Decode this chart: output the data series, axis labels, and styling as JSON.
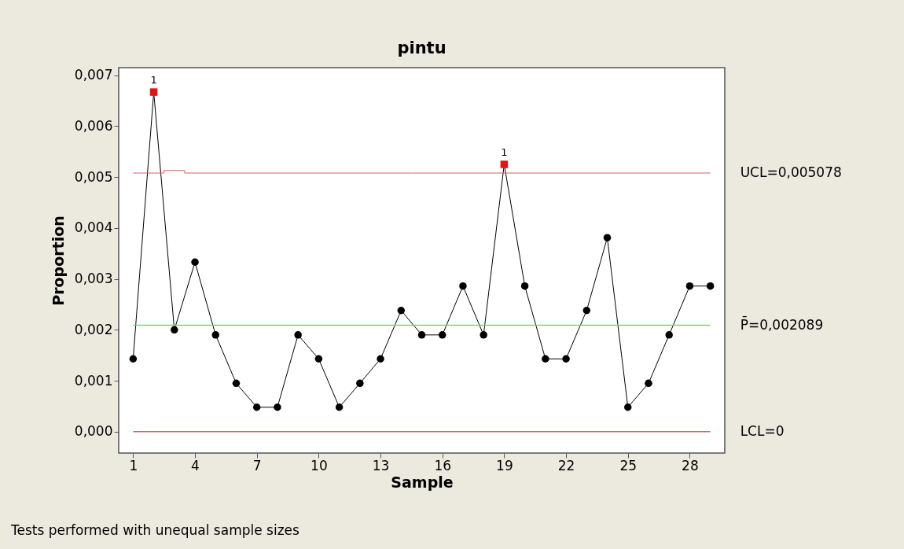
{
  "chart_data": {
    "type": "line",
    "title": "pintu",
    "xlabel": "Sample",
    "ylabel": "Proportion",
    "x": [
      1,
      2,
      3,
      4,
      5,
      6,
      7,
      8,
      9,
      10,
      11,
      12,
      13,
      14,
      15,
      16,
      17,
      18,
      19,
      20,
      21,
      22,
      23,
      24,
      25,
      26,
      27,
      28,
      29
    ],
    "series": [
      {
        "color": "#000000",
        "colors": [
          "#000000",
          "#e31414",
          "#000000",
          "#000000",
          "#000000",
          "#000000",
          "#000000",
          "#000000",
          "#000000",
          "#000000",
          "#000000",
          "#000000",
          "#000000",
          "#000000",
          "#000000",
          "#000000",
          "#000000",
          "#000000",
          "#e31414",
          "#000000",
          "#000000",
          "#000000",
          "#000000",
          "#000000",
          "#000000",
          "#000000",
          "#000000",
          "#000000",
          "#000000"
        ],
        "values": [
          0.00143,
          0.00667,
          0.002,
          0.00333,
          0.0019,
          0.00095,
          0.00048,
          0.00048,
          0.0019,
          0.00143,
          0.00048,
          0.00095,
          0.00143,
          0.00238,
          0.0019,
          0.0019,
          0.00286,
          0.0019,
          0.00525,
          0.00286,
          0.00143,
          0.00143,
          0.00238,
          0.00381,
          0.00048,
          0.00095,
          0.0019,
          0.00286,
          0.00286
        ]
      },
      {
        "name": "UCL=0,005078",
        "type": "step",
        "marker": "none",
        "color": "#d4606e",
        "values": [
          0.00508,
          0.00508,
          0.00513,
          0.00508,
          0.00508,
          0.00508,
          0.00508,
          0.00508,
          0.00508,
          0.00508,
          0.00508,
          0.00508,
          0.00508,
          0.00508,
          0.00508,
          0.00508,
          0.00508,
          0.00508,
          0.00508,
          0.00508,
          0.00508,
          0.00508,
          0.00508,
          0.00508,
          0.00508,
          0.00508,
          0.00508,
          0.00508,
          0.00508
        ]
      }
    ],
    "xlim": [
      0.3,
      29.7
    ],
    "xticks": [
      1,
      4,
      7,
      10,
      13,
      16,
      19,
      22,
      25,
      28
    ],
    "ylim": [
      -0.00042,
      0.00715
    ],
    "yticks": [
      {
        "value": 0,
        "label": "0,000"
      },
      {
        "value": 0.001,
        "label": "0,001"
      },
      {
        "value": 0.002,
        "label": "0,002"
      },
      {
        "value": 0.003,
        "label": "0,003"
      },
      {
        "value": 0.004,
        "label": "0,004"
      },
      {
        "value": 0.005,
        "label": "0,005"
      },
      {
        "value": 0.006,
        "label": "0,006"
      },
      {
        "value": 0.007,
        "label": "0,007"
      }
    ],
    "ref_lines": [
      {
        "axis": "y",
        "value": 0.002089,
        "label": "P̄=0,002089",
        "color": "#7fd07f"
      },
      {
        "axis": "y",
        "value": 0,
        "label": "LCL=0",
        "color": "#d4606e"
      }
    ],
    "annotations": [
      {
        "text": "1",
        "x": 2,
        "y": 0.00667
      },
      {
        "text": "1",
        "x": 19,
        "y": 0.00525
      },
      "Tests performed with unequal sample sizes"
    ],
    "marker": "circle",
    "grid": false
  }
}
